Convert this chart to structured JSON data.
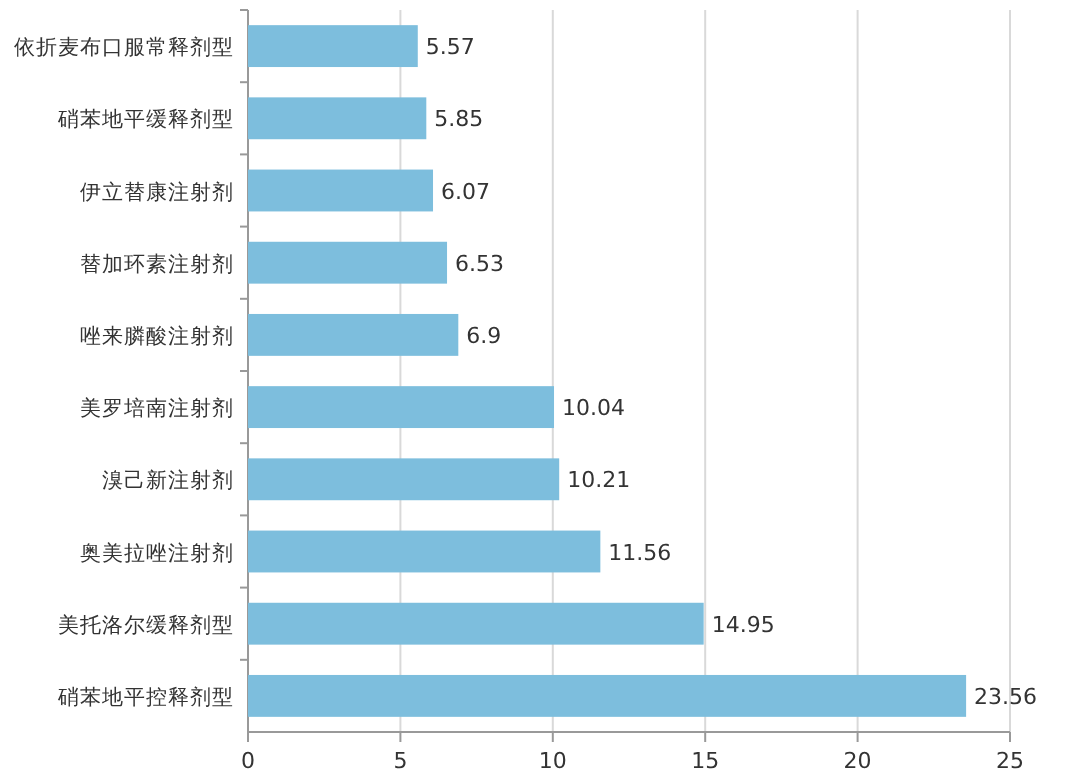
{
  "chart_data": {
    "type": "bar",
    "orientation": "horizontal",
    "categories": [
      "依折麦布口服常释剂型",
      "硝苯地平缓释剂型",
      "伊立替康注射剂",
      "替加环素注射剂",
      "唑来膦酸注射剂",
      "美罗培南注射剂",
      "溴己新注射剂",
      "奥美拉唑注射剂",
      "美托洛尔缓释剂型",
      "硝苯地平控释剂型"
    ],
    "values": [
      5.57,
      5.85,
      6.07,
      6.53,
      6.9,
      10.04,
      10.21,
      11.56,
      14.95,
      23.56
    ],
    "color": "#7dbedd",
    "xlim": [
      0,
      25
    ],
    "xticks": [
      0,
      5,
      10,
      15,
      20,
      25
    ],
    "grid": "x",
    "data_labels": true
  }
}
